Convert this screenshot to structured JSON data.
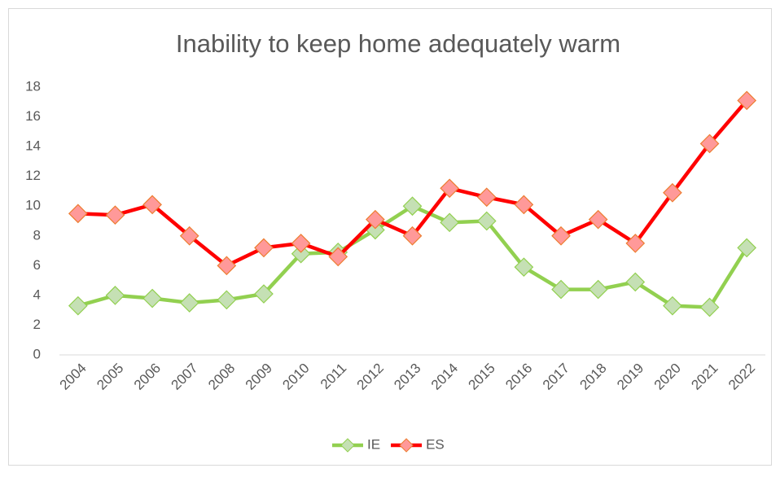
{
  "chart_data": {
    "type": "line",
    "title": "Inability to keep home adequately warm",
    "categories": [
      "2004",
      "2005",
      "2006",
      "2007",
      "2008",
      "2009",
      "2010",
      "2011",
      "2012",
      "2013",
      "2014",
      "2015",
      "2016",
      "2017",
      "2018",
      "2019",
      "2020",
      "2021",
      "2022"
    ],
    "series": [
      {
        "name": "IE",
        "color": "#92d050",
        "marker_fill": "#c5e0b4",
        "marker_edge": "#92d050",
        "marker": "diamond",
        "values": [
          3.3,
          4.0,
          3.8,
          3.5,
          3.7,
          4.1,
          6.8,
          6.9,
          8.4,
          10.0,
          8.9,
          9.0,
          5.9,
          4.4,
          4.4,
          4.9,
          3.3,
          3.2,
          7.2
        ]
      },
      {
        "name": "ES",
        "color": "#ff0000",
        "marker_fill": "#ff9999",
        "marker_edge": "#ed7d31",
        "marker": "diamond",
        "values": [
          9.5,
          9.4,
          10.1,
          8.0,
          6.0,
          7.2,
          7.5,
          6.6,
          9.1,
          8.0,
          11.2,
          10.6,
          10.1,
          8.0,
          9.1,
          7.5,
          10.9,
          14.2,
          17.1
        ]
      }
    ],
    "ylim": [
      0,
      18
    ],
    "yticks": [
      0,
      2,
      4,
      6,
      8,
      10,
      12,
      14,
      16,
      18
    ],
    "grid": false,
    "legend": "bottom"
  }
}
